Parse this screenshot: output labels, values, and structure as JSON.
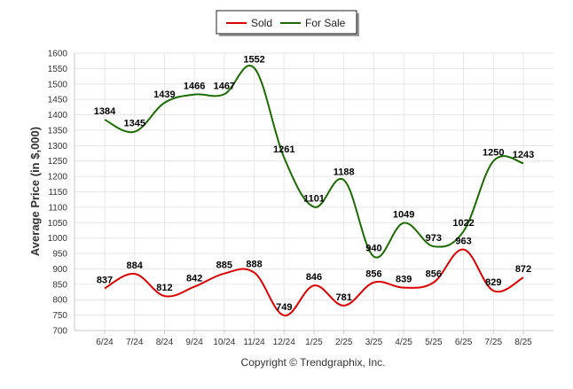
{
  "chart_data": {
    "type": "line",
    "ylabel": "Average Price (in $,000)",
    "xlabel": "",
    "categories": [
      "6/24",
      "7/24",
      "8/24",
      "9/24",
      "10/24",
      "11/24",
      "12/24",
      "1/25",
      "2/25",
      "3/25",
      "4/25",
      "5/25",
      "6/25",
      "7/25",
      "8/25"
    ],
    "y_ticks": [
      700,
      750,
      800,
      850,
      900,
      950,
      1000,
      1050,
      1100,
      1150,
      1200,
      1250,
      1300,
      1350,
      1400,
      1450,
      1500,
      1550,
      1600
    ],
    "ylim": [
      700,
      1600
    ],
    "grid": true,
    "legend_position": "top-center",
    "series": [
      {
        "name": "Sold",
        "color": "#dd0000",
        "values": [
          837,
          884,
          812,
          842,
          885,
          888,
          749,
          846,
          781,
          856,
          839,
          856,
          963,
          829,
          872
        ]
      },
      {
        "name": "For Sale",
        "color": "#1a6b00",
        "values": [
          1384,
          1345,
          1439,
          1466,
          1467,
          1552,
          1261,
          1101,
          1188,
          940,
          1049,
          973,
          1022,
          1250,
          1243
        ]
      }
    ],
    "footer": "Copyright © Trendgraphix, Inc."
  }
}
